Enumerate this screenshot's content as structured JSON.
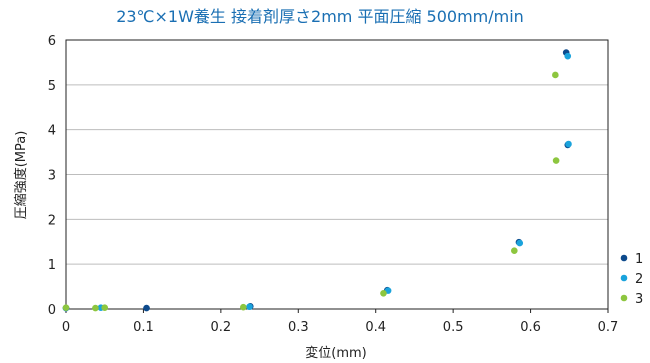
{
  "chart_data": {
    "type": "scatter",
    "title": "23℃×1W養生 接着剤厚さ2mm 平面圧縮 500mm/min",
    "xlabel": "変位(mm)",
    "ylabel": "圧縮強度(MPa)",
    "xlim": [
      0,
      0.7
    ],
    "ylim": [
      0,
      6
    ],
    "xticks": [
      0,
      0.1,
      0.2,
      0.3,
      0.4,
      0.5,
      0.6,
      0.7
    ],
    "xtick_labels": [
      "0",
      "0.1",
      "0.2",
      "0.3",
      "0.4",
      "0.5",
      "0.6",
      "0.7"
    ],
    "yticks": [
      0,
      1,
      2,
      3,
      4,
      5,
      6
    ],
    "ytick_labels": [
      "0",
      "1",
      "2",
      "3",
      "4",
      "5",
      "6"
    ],
    "grid": "horizontal",
    "legend": "right",
    "series": [
      {
        "name": "1",
        "color": "#0d4a8c",
        "points": [
          [
            0,
            0.02
          ],
          [
            0.104,
            0.02
          ],
          [
            0.238,
            0.06
          ],
          [
            0.415,
            0.42
          ],
          [
            0.585,
            1.49
          ],
          [
            0.648,
            3.66
          ],
          [
            0.646,
            5.72
          ]
        ]
      },
      {
        "name": "2",
        "color": "#1aa3dc",
        "points": [
          [
            0,
            0.02
          ],
          [
            0.045,
            0.03
          ],
          [
            0.237,
            0.05
          ],
          [
            0.416,
            0.41
          ],
          [
            0.586,
            1.47
          ],
          [
            0.649,
            3.68
          ],
          [
            0.648,
            5.64
          ]
        ]
      },
      {
        "name": "3",
        "color": "#8dc63f",
        "points": [
          [
            0,
            0.03
          ],
          [
            0.038,
            0.02
          ],
          [
            0.05,
            0.03
          ],
          [
            0.229,
            0.04
          ],
          [
            0.41,
            0.35
          ],
          [
            0.579,
            1.3
          ],
          [
            0.633,
            3.31
          ],
          [
            0.632,
            5.22
          ]
        ]
      }
    ]
  }
}
